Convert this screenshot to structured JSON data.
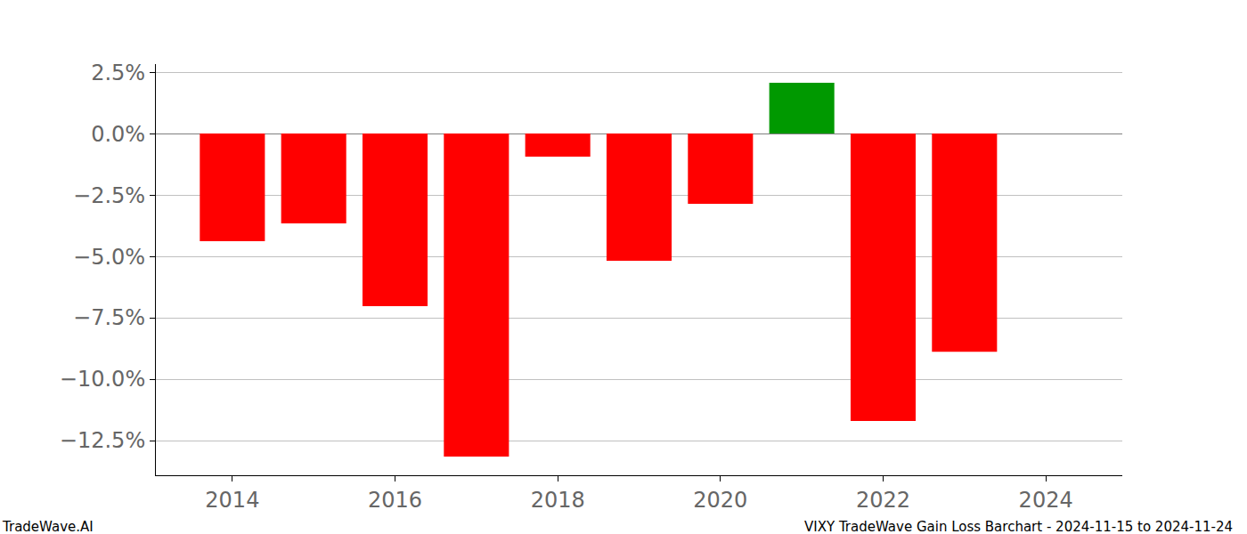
{
  "chart_data": {
    "type": "bar",
    "x": [
      2014,
      2015,
      2016,
      2017,
      2018,
      2019,
      2020,
      2021,
      2022,
      2023,
      2024
    ],
    "values": [
      -4.38,
      -3.66,
      -7.03,
      -13.15,
      -0.94,
      -5.18,
      -2.86,
      2.07,
      -11.7,
      -8.88,
      0
    ],
    "colors": [
      "#ff0000",
      "#ff0000",
      "#ff0000",
      "#ff0000",
      "#ff0000",
      "#ff0000",
      "#ff0000",
      "#009900",
      "#ff0000",
      "#ff0000",
      "#009900"
    ],
    "xlim": [
      2013.06,
      2024.94
    ],
    "xticks": [
      2014,
      2016,
      2018,
      2020,
      2022,
      2024
    ],
    "ylim": [
      -13.91,
      2.83
    ],
    "yticks": [
      {
        "value": 2.5,
        "label": "2.5%"
      },
      {
        "value": 0,
        "label": "0.0%"
      },
      {
        "value": -2.5,
        "label": "−2.5%"
      },
      {
        "value": -5,
        "label": "−5.0%"
      },
      {
        "value": -7.5,
        "label": "−7.5%"
      },
      {
        "value": -10,
        "label": "−10.0%"
      },
      {
        "value": -12.5,
        "label": "−12.5%"
      }
    ],
    "grid": true,
    "annotations": [
      "TradeWave.AI",
      "VIXY TradeWave Gain Loss Barchart - 2024-11-15 to 2024-11-24"
    ]
  }
}
